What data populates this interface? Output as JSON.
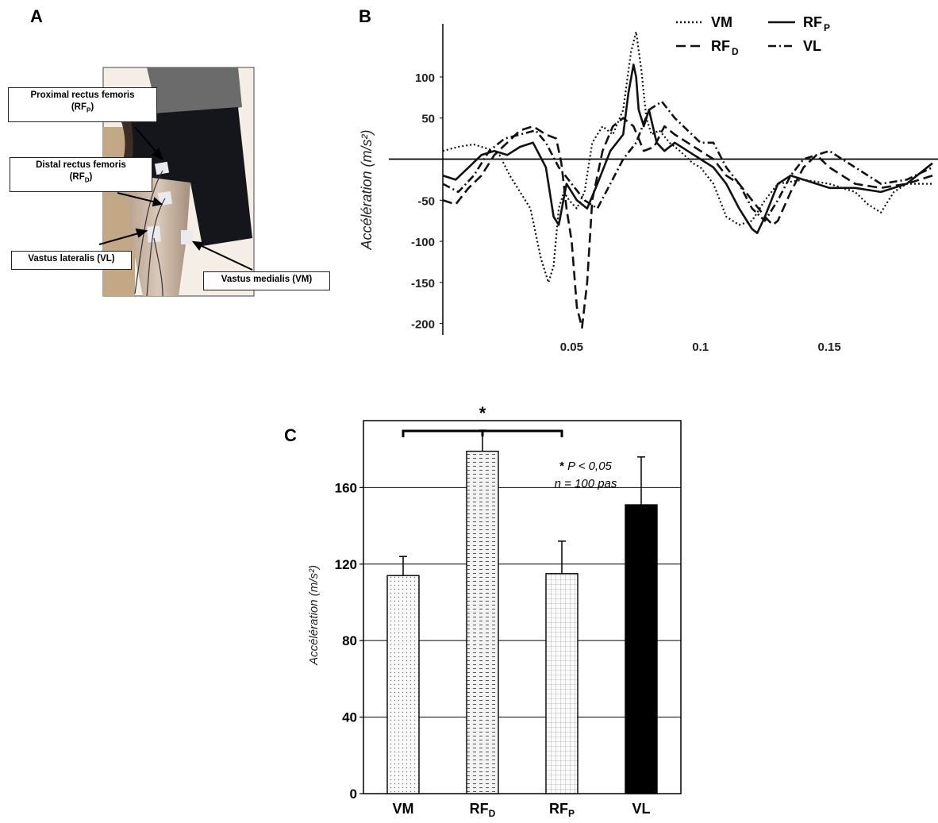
{
  "panel_labels": {
    "a": "A",
    "b": "B",
    "c": "C"
  },
  "panel_a": {
    "callouts": [
      {
        "line1": "Proximal rectus femoris",
        "line2_pre": "(RF",
        "line2_sub": "P",
        "line2_post": ")"
      },
      {
        "line1": "Distal rectus femoris",
        "line2_pre": "(RF",
        "line2_sub": "D",
        "line2_post": ")"
      },
      {
        "line1": "Vastus lateralis (VL)"
      },
      {
        "line1": "Vastus medialis (VM)"
      }
    ]
  },
  "chart_data": [
    {
      "type": "line",
      "panel": "B",
      "ylabel": "Accélération (m/s²)",
      "xlabel": "",
      "xlim": [
        0,
        0.19
      ],
      "ylim": [
        -210,
        155
      ],
      "yticks": [
        "100",
        "50",
        "-50",
        "-100",
        "-150",
        "-200"
      ],
      "xticks": [
        "0.05",
        "0.1",
        "0.15"
      ],
      "legend": {
        "placement": "top-right",
        "entries": [
          {
            "key": "vm",
            "label": "VM",
            "style": "dotted"
          },
          {
            "key": "rfp",
            "label": "RF",
            "sub": "P",
            "style": "solid"
          },
          {
            "key": "rfd",
            "label": "RF",
            "sub": "D",
            "style": "dashed"
          },
          {
            "key": "vl",
            "label": "VL",
            "style": "dashdot"
          }
        ]
      },
      "series": [
        {
          "key": "vm",
          "x": [
            0,
            0.006,
            0.012,
            0.018,
            0.022,
            0.026,
            0.03,
            0.034,
            0.038,
            0.041,
            0.043,
            0.045,
            0.047,
            0.049,
            0.052,
            0.055,
            0.058,
            0.062,
            0.066,
            0.07,
            0.073,
            0.075,
            0.077,
            0.079,
            0.081,
            0.084,
            0.088,
            0.092,
            0.097,
            0.1,
            0.105,
            0.11,
            0.115,
            0.12,
            0.125,
            0.13,
            0.14,
            0.15,
            0.16,
            0.165,
            0.17,
            0.175,
            0.18,
            0.19
          ],
          "y": [
            10,
            15,
            18,
            12,
            5,
            -20,
            -40,
            -60,
            -120,
            -150,
            -130,
            -60,
            -40,
            -50,
            -60,
            -40,
            20,
            40,
            30,
            60,
            130,
            155,
            110,
            50,
            30,
            35,
            20,
            10,
            -5,
            -10,
            -30,
            -70,
            -80,
            -75,
            -50,
            -30,
            -25,
            -30,
            -40,
            -55,
            -65,
            -40,
            -30,
            -30
          ]
        },
        {
          "key": "rfp",
          "x": [
            0,
            0.005,
            0.01,
            0.015,
            0.02,
            0.025,
            0.03,
            0.035,
            0.04,
            0.043,
            0.045,
            0.048,
            0.052,
            0.056,
            0.06,
            0.065,
            0.07,
            0.072,
            0.074,
            0.075,
            0.076,
            0.078,
            0.08,
            0.083,
            0.086,
            0.09,
            0.095,
            0.1,
            0.105,
            0.11,
            0.115,
            0.12,
            0.122,
            0.125,
            0.13,
            0.135,
            0.14,
            0.15,
            0.16,
            0.17,
            0.18,
            0.19
          ],
          "y": [
            -20,
            -25,
            -10,
            5,
            10,
            5,
            15,
            20,
            -10,
            -70,
            -80,
            -30,
            -50,
            -60,
            -30,
            10,
            30,
            80,
            115,
            100,
            60,
            40,
            60,
            20,
            10,
            20,
            10,
            0,
            -10,
            -30,
            -60,
            -85,
            -90,
            -70,
            -30,
            -20,
            -25,
            -35,
            -35,
            -40,
            -30,
            -5
          ]
        },
        {
          "key": "rfd",
          "x": [
            0,
            0.005,
            0.01,
            0.015,
            0.02,
            0.025,
            0.03,
            0.035,
            0.04,
            0.044,
            0.046,
            0.048,
            0.05,
            0.052,
            0.054,
            0.056,
            0.058,
            0.062,
            0.066,
            0.07,
            0.074,
            0.078,
            0.082,
            0.086,
            0.09,
            0.095,
            0.1,
            0.105,
            0.11,
            0.115,
            0.12,
            0.125,
            0.128,
            0.13,
            0.135,
            0.14,
            0.145,
            0.15,
            0.16,
            0.17,
            0.18,
            0.19
          ],
          "y": [
            -50,
            -55,
            -35,
            -20,
            5,
            20,
            35,
            40,
            30,
            25,
            -5,
            -60,
            -100,
            -180,
            -205,
            -150,
            -50,
            10,
            40,
            50,
            40,
            10,
            15,
            40,
            30,
            20,
            10,
            0,
            -20,
            -30,
            -50,
            -70,
            -80,
            -75,
            -40,
            -10,
            5,
            -10,
            -30,
            -35,
            -30,
            -20
          ]
        },
        {
          "key": "vl",
          "x": [
            0,
            0.006,
            0.012,
            0.018,
            0.024,
            0.03,
            0.036,
            0.04,
            0.045,
            0.05,
            0.055,
            0.06,
            0.065,
            0.07,
            0.075,
            0.08,
            0.085,
            0.09,
            0.095,
            0.1,
            0.105,
            0.11,
            0.115,
            0.12,
            0.125,
            0.13,
            0.135,
            0.14,
            0.15,
            0.16,
            0.17,
            0.18,
            0.19
          ],
          "y": [
            -30,
            -40,
            -20,
            10,
            25,
            30,
            35,
            20,
            -10,
            -30,
            -50,
            -60,
            -30,
            0,
            20,
            60,
            70,
            50,
            35,
            20,
            20,
            -10,
            -30,
            -60,
            -75,
            -50,
            -20,
            0,
            10,
            -10,
            -30,
            -25,
            -10
          ]
        }
      ]
    },
    {
      "type": "bar",
      "panel": "C",
      "ylabel": "Accélération (m/s²)",
      "ylim": [
        0,
        195
      ],
      "yticks": [
        "0",
        "40",
        "80",
        "120",
        "160"
      ],
      "categories": [
        {
          "label": "VM"
        },
        {
          "label": "RF",
          "sub": "D"
        },
        {
          "label": "RF",
          "sub": "P"
        },
        {
          "label": "VL"
        }
      ],
      "values": [
        114,
        179,
        115,
        151
      ],
      "errors": [
        10,
        11,
        17,
        25
      ],
      "significance": {
        "marker": "*",
        "from": "VM",
        "to": "RF_P"
      },
      "annotation": {
        "star": "*",
        "line1": " P < 0,05",
        "line2": "n = 100 pas"
      }
    }
  ]
}
